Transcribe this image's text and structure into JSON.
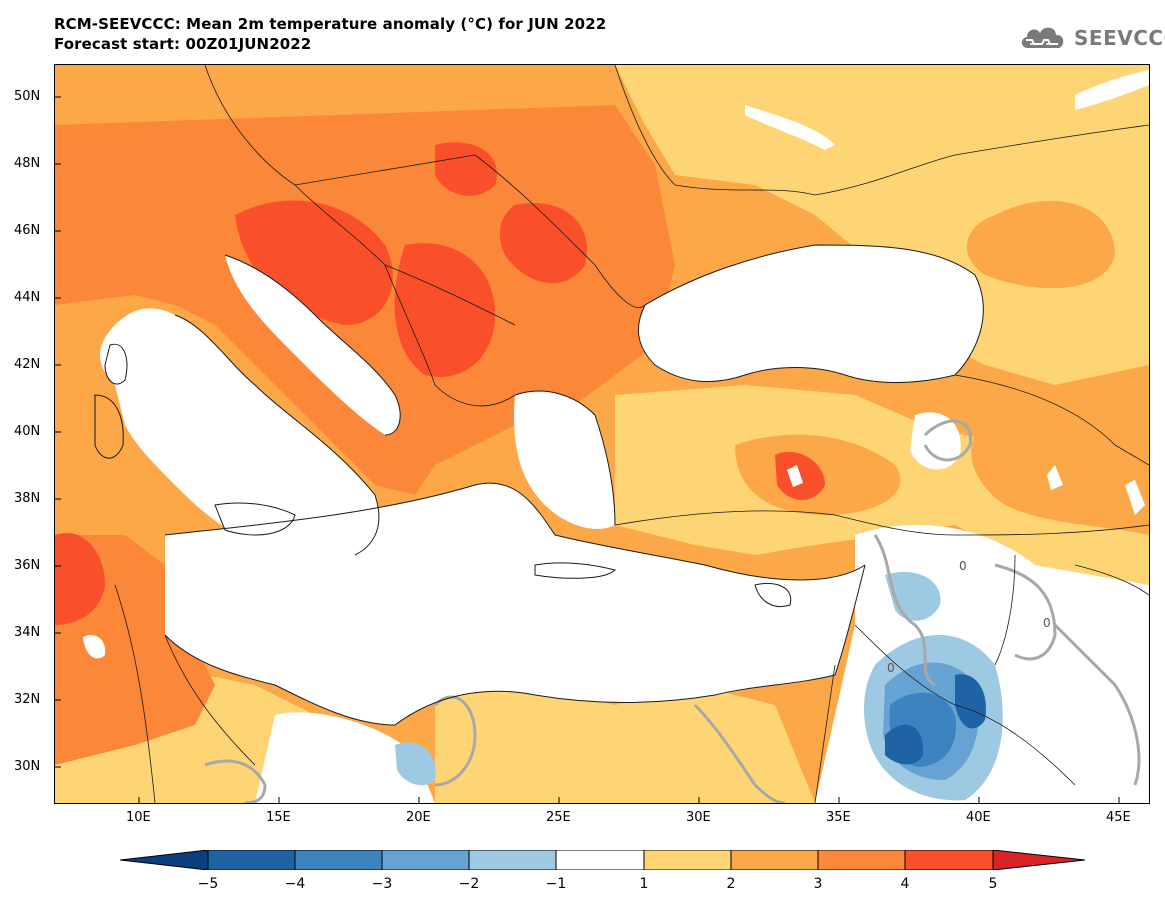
{
  "header": {
    "title_line1": "RCM-SEEVCCC: Mean 2m temperature anomaly (°C) for JUN 2022",
    "title_line2": "Forecast start: 00Z01JUN2022"
  },
  "logo": {
    "text": "SEEVCCC",
    "icon": "cloud-icon"
  },
  "map": {
    "variable": "2m temperature anomaly",
    "units": "°C",
    "lon_range": [
      7,
      46
    ],
    "lat_range": [
      29,
      51
    ],
    "lat_ticks": [
      "30N",
      "32N",
      "34N",
      "36N",
      "38N",
      "40N",
      "42N",
      "44N",
      "46N",
      "48N",
      "50N"
    ],
    "lon_ticks": [
      "10E",
      "15E",
      "20E",
      "25E",
      "30E",
      "35E",
      "40E",
      "45E"
    ],
    "contour_label": "0"
  },
  "colorbar": {
    "labels": [
      "−5",
      "−4",
      "−3",
      "−2",
      "−1",
      "1",
      "2",
      "3",
      "4",
      "5"
    ],
    "colors": [
      "#0d3f80",
      "#1f63a6",
      "#3c84c0",
      "#66a3d3",
      "#9ec9e3",
      "#ffffff",
      "#fed574",
      "#fca848",
      "#fb8838",
      "#f94f2a",
      "#d92326"
    ]
  }
}
